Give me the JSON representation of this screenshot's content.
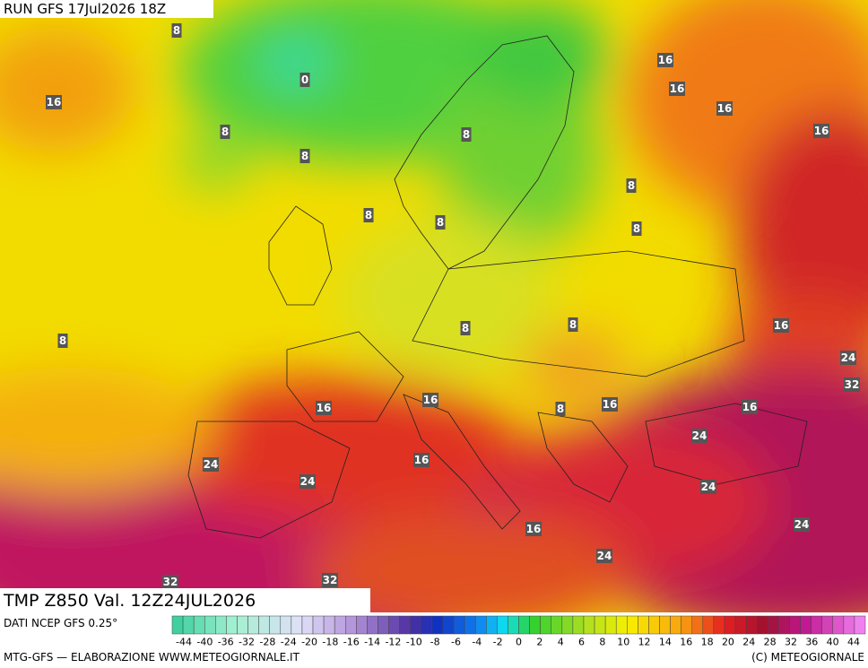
{
  "header": {
    "run": "RUN GFS 17Jul2026 18Z"
  },
  "map": {
    "contour_labels": [
      "8",
      "0",
      "16",
      "16",
      "16",
      "16",
      "16",
      "8",
      "8",
      "8",
      "8",
      "8",
      "8",
      "8",
      "8",
      "8",
      "8",
      "16",
      "24",
      "32",
      "16",
      "16",
      "16",
      "8",
      "16",
      "24",
      "16",
      "24",
      "24",
      "24",
      "24",
      "16",
      "24",
      "32",
      "32"
    ]
  },
  "footer": {
    "title": "TMP Z850 Val. 12Z24JUL2026",
    "source": "DATI NCEP GFS 0.25°",
    "credit": "MTG-GFS — ELABORAZIONE WWW.METEOGIORNALE.IT",
    "copyright": "(C) METEOGIORNALE"
  },
  "legend": {
    "labels": [
      "-44",
      "-40",
      "-36",
      "-32",
      "-28",
      "-24",
      "-20",
      "-18",
      "-16",
      "-14",
      "-12",
      "-10",
      "-8",
      "-6",
      "-4",
      "-2",
      "0",
      "2",
      "4",
      "6",
      "8",
      "10",
      "12",
      "14",
      "16",
      "18",
      "20",
      "24",
      "28",
      "32",
      "36",
      "40",
      "44"
    ]
  }
}
